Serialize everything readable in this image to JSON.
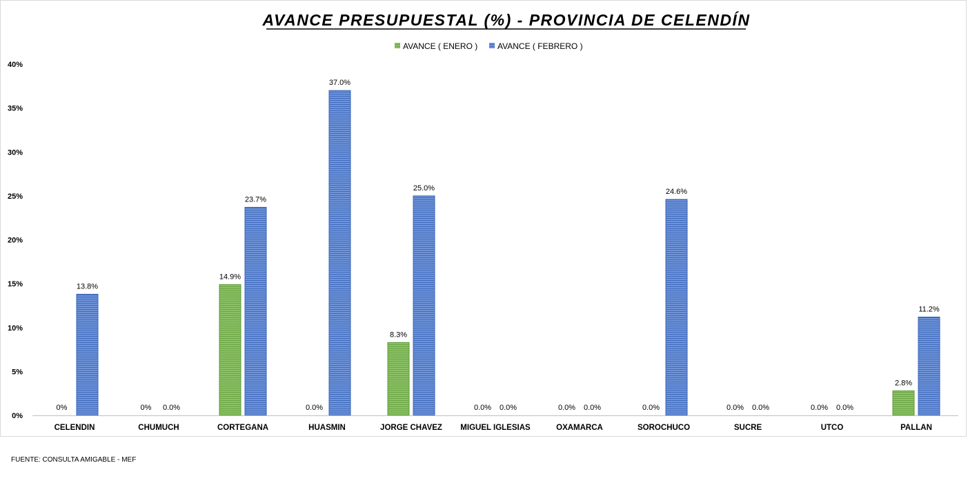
{
  "chart_data": {
    "type": "bar",
    "title": "AVANCE PRESUPUESTAL (%) - PROVINCIA DE CELENDÍN",
    "categories": [
      "CELENDIN",
      "CHUMUCH",
      "CORTEGANA",
      "HUASMIN",
      "JORGE CHAVEZ",
      "MIGUEL IGLESIAS",
      "OXAMARCA",
      "SOROCHUCO",
      "SUCRE",
      "UTCO",
      "PALLAN"
    ],
    "series": [
      {
        "name": "AVANCE ( ENERO )",
        "color": "#70ad47",
        "values": [
          0,
          0,
          14.9,
          0,
          8.3,
          0,
          0,
          0,
          0,
          0,
          2.8
        ],
        "labels": [
          "0%",
          "0%",
          "14.9%",
          "0.0%",
          "8.3%",
          "0.0%",
          "0.0%",
          "0.0%",
          "0.0%",
          "0.0%",
          "2.8%"
        ]
      },
      {
        "name": "AVANCE ( FEBRERO )",
        "color": "#4472c4",
        "values": [
          13.8,
          0,
          23.7,
          37.0,
          25.0,
          0,
          0,
          24.6,
          0,
          0,
          11.2
        ],
        "labels": [
          "13.8%",
          "0.0%",
          "23.7%",
          "37.0%",
          "25.0%",
          "0.0%",
          "0.0%",
          "24.6%",
          "0.0%",
          "0.0%",
          "11.2%"
        ]
      }
    ],
    "ylim": [
      0,
      40
    ],
    "yticks": [
      0,
      5,
      10,
      15,
      20,
      25,
      30,
      35,
      40
    ],
    "ytick_labels": [
      "0%",
      "5%",
      "10%",
      "15%",
      "20%",
      "25%",
      "30%",
      "35%",
      "40%"
    ],
    "xlabel": "",
    "ylabel": "",
    "grid": false,
    "legend": "top-center"
  },
  "source": "FUENTE: CONSULTA AMIGABLE - MEF"
}
